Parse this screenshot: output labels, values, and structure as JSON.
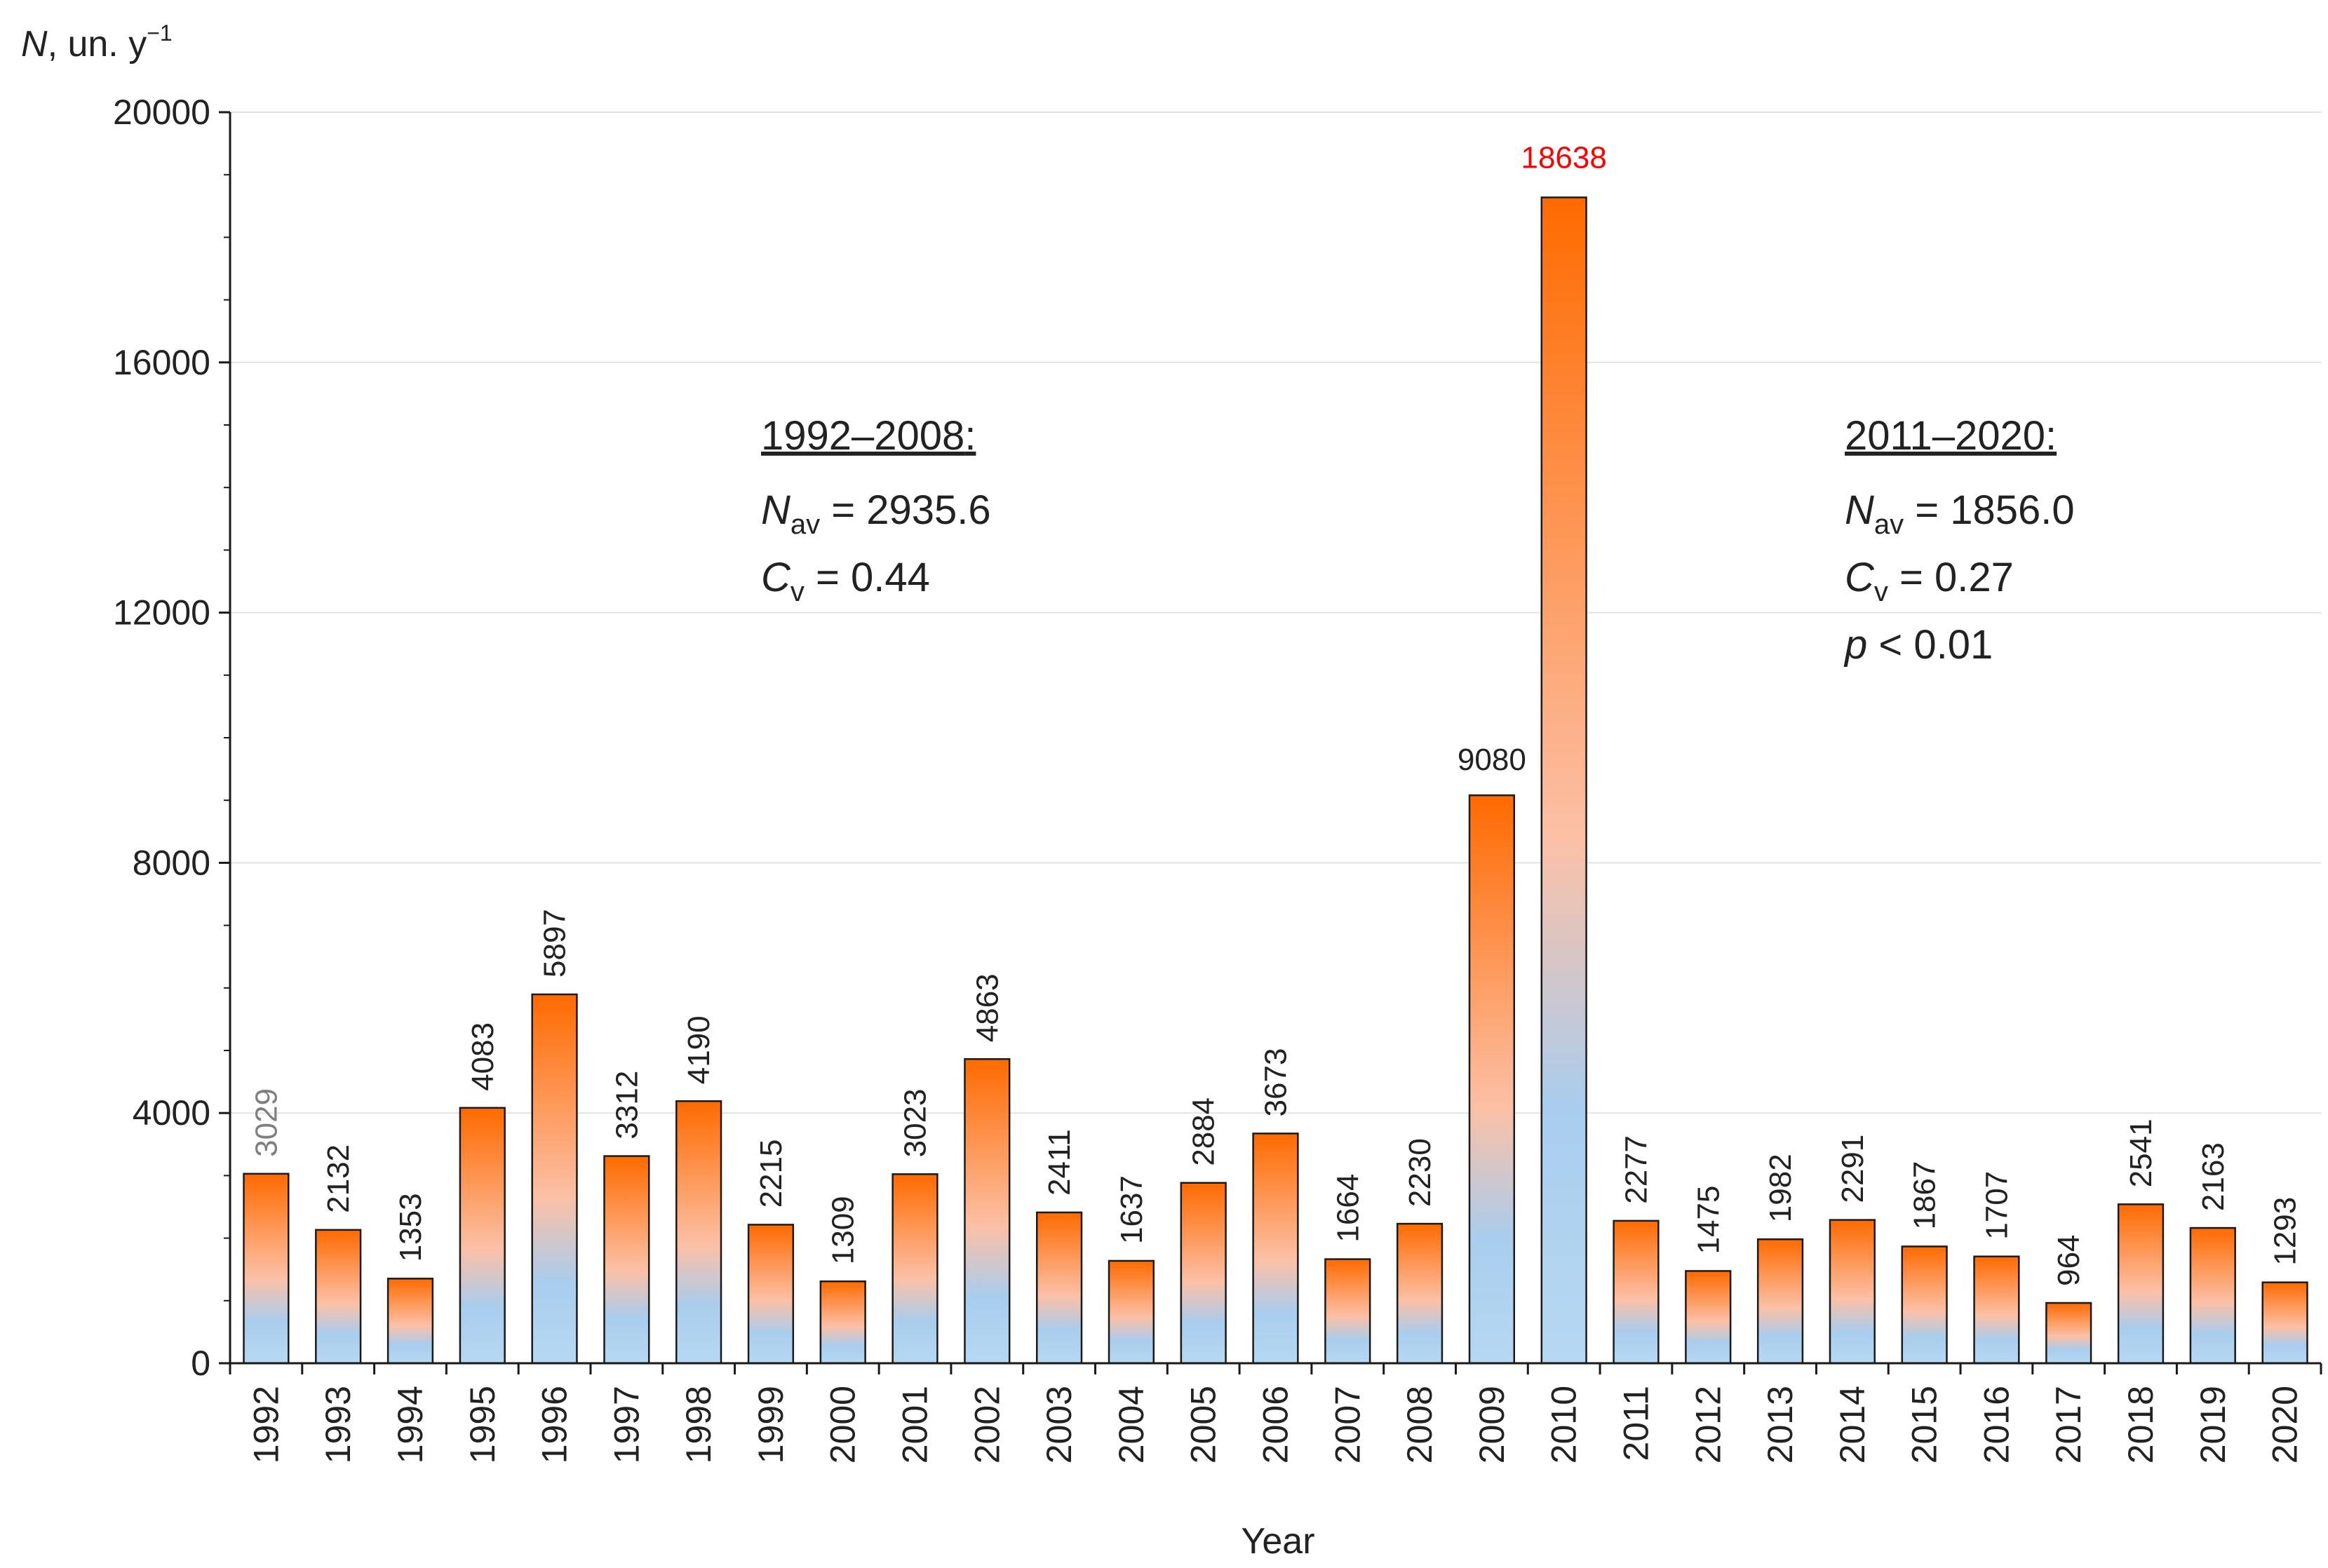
{
  "chart_data": {
    "type": "bar",
    "title": "",
    "ylabel_parts": {
      "symbol": "N",
      "rest": ", un. y",
      "exp": "−1"
    },
    "xlabel": "Year",
    "ylim": [
      0,
      20000
    ],
    "yticks": [
      0,
      4000,
      8000,
      12000,
      16000,
      20000
    ],
    "grid": "horizontal",
    "categories": [
      "1992",
      "1993",
      "1994",
      "1995",
      "1996",
      "1997",
      "1998",
      "1999",
      "2000",
      "2001",
      "2002",
      "2003",
      "2004",
      "2005",
      "2006",
      "2007",
      "2008",
      "2009",
      "2010",
      "2011",
      "2012",
      "2013",
      "2014",
      "2015",
      "2016",
      "2017",
      "2018",
      "2019",
      "2020"
    ],
    "values": [
      3029,
      2132,
      1353,
      4083,
      5897,
      3312,
      4190,
      2215,
      1309,
      3023,
      4863,
      2411,
      1637,
      2884,
      3673,
      1664,
      2230,
      9080,
      18638,
      2277,
      1475,
      1982,
      2291,
      1867,
      1707,
      964,
      2541,
      2163,
      1293
    ],
    "highlight": {
      "category": "2010",
      "label_color": "#ff0000"
    },
    "first_label_color": "#7f7f7f",
    "colors": {
      "bar_top": "#ff6a00",
      "bar_mid": "#fcc0a6",
      "bar_bottom": "#9fcbee",
      "bar_outline": "#1a1a1a",
      "grid": "#e3e3e3"
    },
    "annotations": [
      {
        "period": "1992–2008",
        "nav_symbol": "N",
        "nav_sub": "av",
        "nav_value": " = 2935.6",
        "cv_symbol": "C",
        "cv_sub": "v",
        "cv_value": " = 0.44"
      },
      {
        "period": "2011–2020",
        "nav_symbol": "N",
        "nav_sub": "av",
        "nav_value": " = 1856.0",
        "cv_symbol": "C",
        "cv_sub": "v",
        "cv_value": " = 0.27",
        "p_symbol": "p",
        "p_value": " < 0.01"
      }
    ]
  }
}
